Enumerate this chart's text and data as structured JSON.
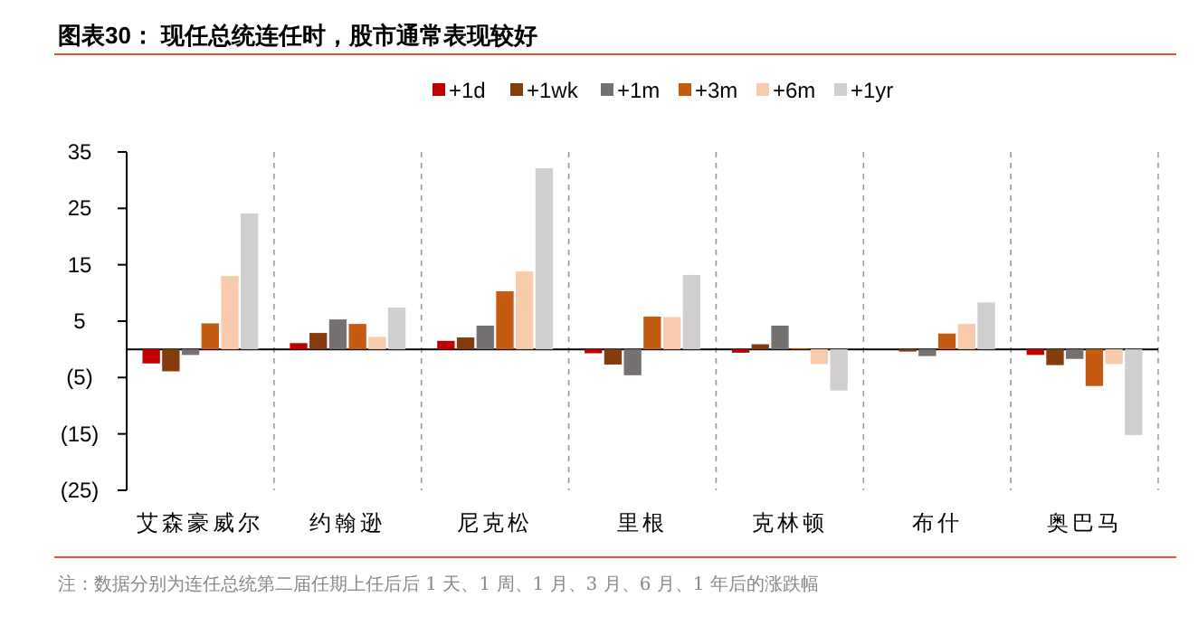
{
  "chart_data": {
    "type": "bar",
    "title": "图表30：  现任总统连任时，股市通常表现较好",
    "categories": [
      "艾森豪威尔",
      "约翰逊",
      "尼克松",
      "里根",
      "克林顿",
      "布什",
      "奥巴马"
    ],
    "series": [
      {
        "name": "+1d",
        "color": "#c00000",
        "values": [
          -2.5,
          1.1,
          1.5,
          -0.7,
          -0.6,
          null,
          -1.0
        ]
      },
      {
        "name": "+1wk",
        "color": "#843c0c",
        "values": [
          -3.9,
          2.9,
          2.1,
          -2.7,
          0.9,
          -0.4,
          -2.8
        ]
      },
      {
        "name": "+1m",
        "color": "#767171",
        "values": [
          -1.0,
          5.3,
          4.2,
          -4.6,
          4.2,
          -1.2,
          -1.7
        ]
      },
      {
        "name": "+3m",
        "color": "#c55a11",
        "values": [
          4.6,
          4.5,
          10.3,
          5.8,
          0.2,
          2.8,
          -6.5
        ]
      },
      {
        "name": "+6m",
        "color": "#f8cbad",
        "values": [
          13.0,
          2.2,
          13.8,
          5.7,
          -2.6,
          4.5,
          -2.6
        ]
      },
      {
        "name": "+1yr",
        "color": "#d0cece",
        "values": [
          24.1,
          7.4,
          32.1,
          13.2,
          -7.3,
          8.3,
          -15.2
        ]
      }
    ],
    "ylim": [
      -25,
      35
    ],
    "yticks": [
      35,
      25,
      15,
      5,
      {
        "value": -5,
        "label": "(5)"
      },
      {
        "value": -15,
        "label": "(15)"
      },
      {
        "value": -25,
        "label": "(25)"
      }
    ],
    "legend": "top",
    "annotations": [
      "注：数据分别为连任总统第二届任期上任后后 1 天、1 周、1 月、3 月、6 月、1 年后的涨跌幅"
    ]
  }
}
